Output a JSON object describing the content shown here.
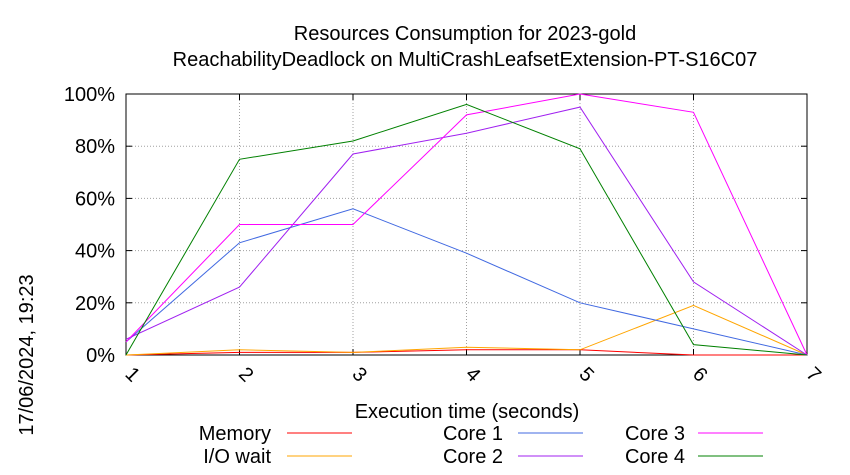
{
  "chart_data": {
    "type": "line",
    "title": [
      "Resources Consumption for 2023-gold",
      "ReachabilityDeadlock on MultiCrashLeafsetExtension-PT-S16C07"
    ],
    "xlabel": "Execution time (seconds)",
    "ylabel": "",
    "timestamp": "17/06/2024, 19:23",
    "xlim": [
      1,
      7
    ],
    "ylim": [
      0,
      100
    ],
    "x_ticks": [
      "1",
      "2",
      "3",
      "4",
      "5",
      "6",
      "7"
    ],
    "y_ticks": [
      "0%",
      "20%",
      "40%",
      "60%",
      "80%",
      "100%"
    ],
    "grid": true,
    "legend_position": "bottom",
    "x": [
      1,
      2,
      3,
      4,
      5,
      6,
      7
    ],
    "series": [
      {
        "name": "Memory",
        "color": "#ff0000",
        "values": [
          0,
          1,
          1,
          2,
          2,
          0,
          0
        ]
      },
      {
        "name": "I/O wait",
        "color": "#ffa500",
        "values": [
          0,
          2,
          1,
          3,
          2,
          19,
          0
        ]
      },
      {
        "name": "Core 1",
        "color": "#4169e1",
        "values": [
          5,
          43,
          56,
          39,
          20,
          10,
          0
        ]
      },
      {
        "name": "Core 2",
        "color": "#a020f0",
        "values": [
          6,
          26,
          77,
          85,
          95,
          28,
          0
        ]
      },
      {
        "name": "Core 3",
        "color": "#ff00ff",
        "values": [
          5,
          50,
          50,
          92,
          100,
          93,
          0
        ]
      },
      {
        "name": "Core 4",
        "color": "#008000",
        "values": [
          0,
          75,
          82,
          96,
          79,
          4,
          0
        ]
      }
    ]
  }
}
